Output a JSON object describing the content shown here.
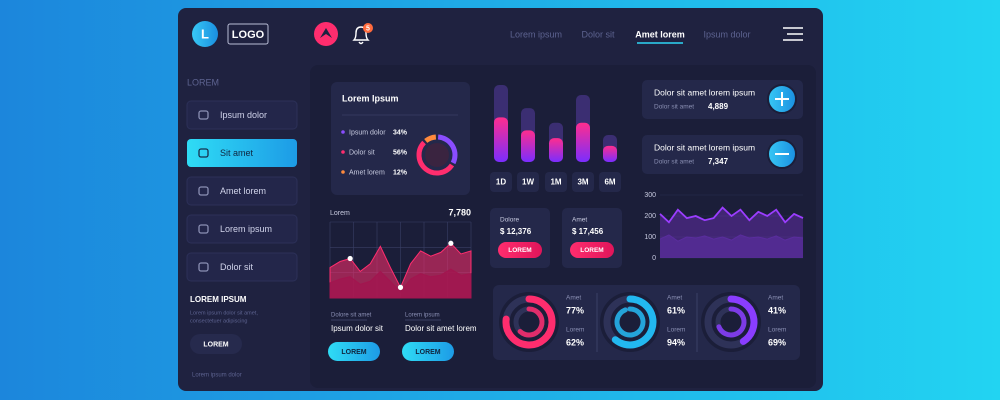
{
  "header": {
    "logo_letter": "L",
    "logo": "LOGO",
    "notification_count": "5",
    "nav": [
      "Lorem ipsum",
      "Dolor sit",
      "Amet lorem",
      "Ipsum dolor"
    ],
    "active_nav": 2
  },
  "sidebar": {
    "heading": "LOREM",
    "menu": [
      "Ipsum dolor",
      "Sit amet",
      "Amet lorem",
      "Lorem ipsum",
      "Dolor sit"
    ],
    "active": 1,
    "section_title": "LOREM IPSUM",
    "text": [
      "Lorem ipsum dolor sit amet,",
      "consectetuer adipiscing"
    ],
    "button": "LOREM",
    "footer": "Lorem ipsum dolor"
  },
  "donut_card": {
    "title": "Lorem Ipsum",
    "items": [
      {
        "name": "Ipsum dolor",
        "value": 34,
        "label": "34%",
        "color": "#8a4dff"
      },
      {
        "name": "Dolor sit",
        "value": 56,
        "label": "56%",
        "color": "#ff2d6e"
      },
      {
        "name": "Amet lorem",
        "value": 12,
        "label": "12%",
        "color": "#ff8a3d"
      }
    ]
  },
  "line_card": {
    "title": "Lorem",
    "total": "7,780",
    "ylim": [
      0,
      100
    ],
    "markers": [
      2,
      7,
      12
    ],
    "series": [
      {
        "color": "#ff2d6e",
        "values": [
          40,
          48,
          52,
          35,
          45,
          68,
          40,
          14,
          45,
          62,
          55,
          60,
          72,
          58,
          62
        ]
      },
      {
        "color": "#a3154f",
        "values": [
          20,
          25,
          28,
          18,
          22,
          35,
          22,
          8,
          25,
          32,
          28,
          30,
          38,
          30,
          32
        ]
      }
    ],
    "stats": [
      {
        "caption": "Dolore sit amet",
        "label": "Ipsum dolor sit",
        "button": "LOREM"
      },
      {
        "caption": "Lorem ipsum",
        "label": "Dolor sit amet lorem",
        "button": "LOREM"
      }
    ]
  },
  "bar_chart": {
    "categories": [
      "1D",
      "1W",
      "1M",
      "3M",
      "6M"
    ],
    "values": [
      58,
      41,
      31,
      51,
      21
    ],
    "max_values": [
      100,
      70,
      51,
      87,
      35
    ],
    "ylim": [
      0,
      100
    ]
  },
  "price_cards": [
    {
      "label": "Dolore",
      "amount": "$ 12,376",
      "button": "LOREM"
    },
    {
      "label": "Amet",
      "amount": "$ 17,456",
      "button": "LOREM"
    }
  ],
  "info_cards": [
    {
      "title": "Dolor sit amet lorem ipsum",
      "label": "Dolor sit amet",
      "value": "4,889"
    },
    {
      "title": "Dolor sit amet lorem ipsum",
      "label": "Dolor sit amet",
      "value": "7,347"
    }
  ],
  "area_chart": {
    "ylim": [
      0,
      300
    ],
    "yticks": [
      0,
      100,
      200,
      300
    ],
    "series": [
      {
        "color": "#9b3dff",
        "values": [
          210,
          170,
          230,
          190,
          200,
          180,
          190,
          240,
          200,
          230,
          180,
          220,
          200,
          230,
          170,
          210,
          190
        ]
      },
      {
        "color": "#5a2d9e",
        "values": [
          90,
          110,
          80,
          100,
          95,
          105,
          90,
          100,
          85,
          110,
          95,
          100,
          90,
          105,
          85,
          100,
          95
        ]
      }
    ]
  },
  "gauges": [
    {
      "color": "#ff2d6e",
      "rings": [
        {
          "name": "Amet",
          "value": 77,
          "label": "77%"
        },
        {
          "name": "Lorem",
          "value": 62,
          "label": "62%"
        }
      ]
    },
    {
      "color": "#22b8f0",
      "rings": [
        {
          "name": "Amet",
          "value": 61,
          "label": "61%"
        },
        {
          "name": "Lorem",
          "value": 94,
          "label": "94%"
        }
      ]
    },
    {
      "color": "#8a3dff",
      "rings": [
        {
          "name": "Amet",
          "value": 41,
          "label": "41%"
        },
        {
          "name": "Lorem",
          "value": 69,
          "label": "69%"
        }
      ]
    }
  ]
}
